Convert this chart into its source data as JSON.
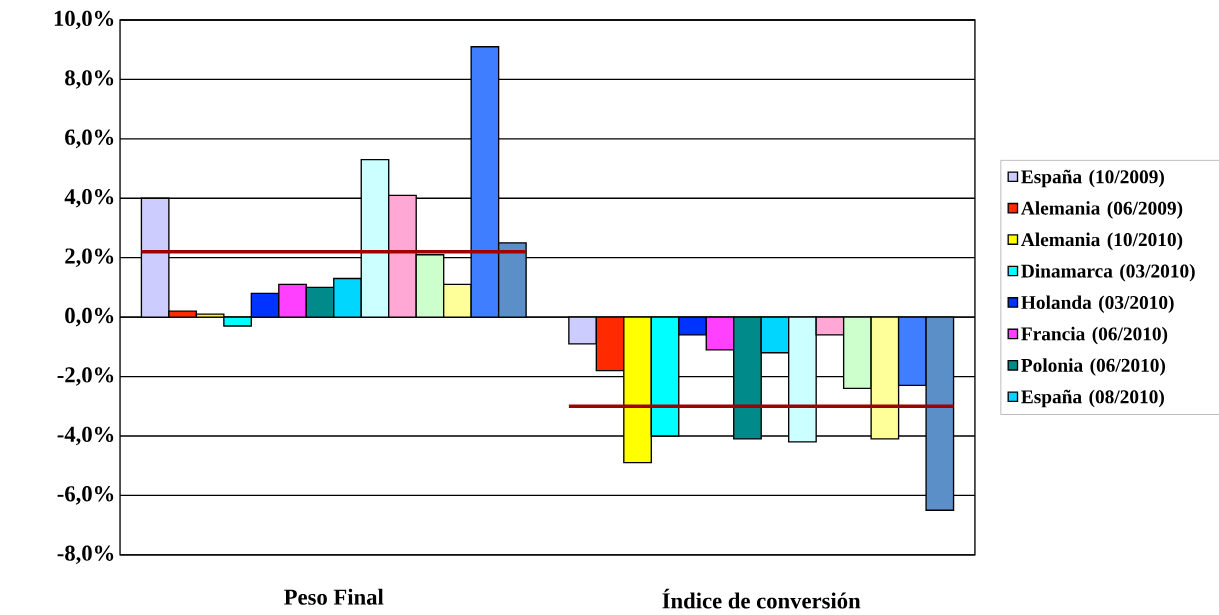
{
  "chart_data": {
    "type": "bar",
    "categories": [
      "Peso Final",
      "Índice de conversión"
    ],
    "ylim": [
      -8,
      10
    ],
    "yticks": [
      {
        "value": -8,
        "label": "-8,0%"
      },
      {
        "value": -6,
        "label": "-6,0%"
      },
      {
        "value": -4,
        "label": "-4,0%"
      },
      {
        "value": -2,
        "label": "-2,0%"
      },
      {
        "value": 0,
        "label": "0,0%"
      },
      {
        "value": 2,
        "label": "2,0%"
      },
      {
        "value": 4,
        "label": "4,0%"
      },
      {
        "value": 6,
        "label": "6,0%"
      },
      {
        "value": 8,
        "label": "8,0%"
      },
      {
        "value": 10,
        "label": "10,0%"
      }
    ],
    "grid": "y",
    "legend": "right",
    "series": [
      {
        "name": "España (10/2009)",
        "color": "#ccccff",
        "values": [
          4.0,
          -0.9
        ]
      },
      {
        "name": "Alemania (06/2009)",
        "color": "#ff2a00",
        "values": [
          0.2,
          -1.8
        ]
      },
      {
        "name": "Alemania (10/2010)",
        "color": "#ffff00",
        "values": [
          0.1,
          -4.9
        ]
      },
      {
        "name": "Dinamarca (03/2010)",
        "color": "#00ffff",
        "values": [
          -0.3,
          -4.0
        ]
      },
      {
        "name": "Holanda (03/2010)",
        "color": "#0033ff",
        "values": [
          0.8,
          -0.6
        ]
      },
      {
        "name": "Francia (06/2010)",
        "color": "#ff40ff",
        "values": [
          1.1,
          -1.1
        ]
      },
      {
        "name": "Polonia (06/2010)",
        "color": "#008b8b",
        "values": [
          1.0,
          -4.1
        ]
      },
      {
        "name": "España (08/2010)",
        "color": "#00d6ff",
        "values": [
          1.3,
          -1.2
        ]
      },
      {
        "color": "#ccffff",
        "values": [
          5.3,
          -4.2
        ]
      },
      {
        "color": "#ffa8d5",
        "values": [
          4.1,
          -0.6
        ]
      },
      {
        "color": "#ccffcc",
        "values": [
          2.1,
          -2.4
        ]
      },
      {
        "color": "#ffff99",
        "values": [
          1.1,
          -4.1
        ]
      },
      {
        "color": "#3f7fff",
        "values": [
          9.1,
          -2.3
        ]
      },
      {
        "color": "#5b8fc8",
        "values": [
          2.5,
          -6.5
        ]
      }
    ],
    "ref_lines": [
      {
        "axis": "y",
        "value": 2.2,
        "color": "#a00000"
      },
      {
        "axis": "y",
        "value": -3.0,
        "color": "#a00000"
      }
    ]
  }
}
